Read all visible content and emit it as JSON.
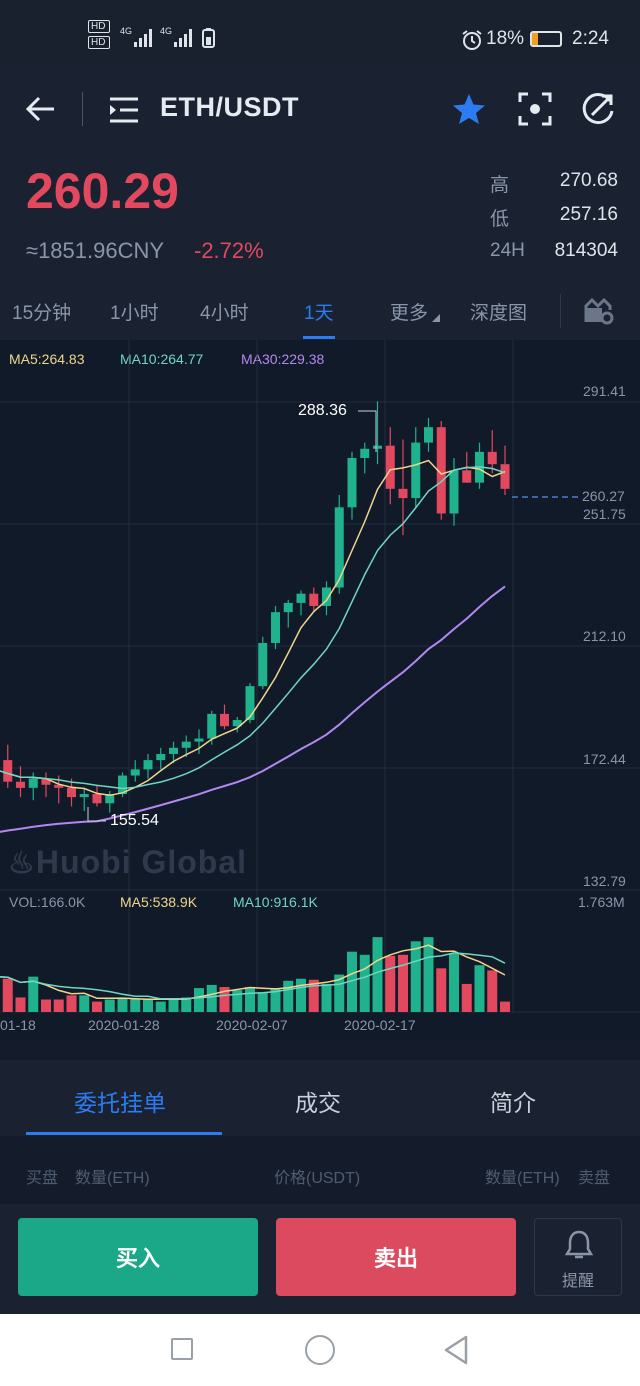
{
  "status": {
    "hd1": "HD",
    "hd2": "HD",
    "net1": "4G",
    "net2": "4G",
    "battery": "18%",
    "time": "2:24"
  },
  "header": {
    "pair": "ETH/USDT"
  },
  "price": {
    "last": "260.29",
    "cny": "≈1851.96CNY",
    "change": "-2.72%",
    "high_label": "高",
    "high": "270.68",
    "low_label": "低",
    "low": "257.16",
    "vol_label": "24H",
    "vol": "814304"
  },
  "tabs": [
    "15分钟",
    "1小时",
    "4小时",
    "1天",
    "更多",
    "深度图"
  ],
  "active_tab": "1天",
  "chart_data": {
    "type": "candlestick",
    "ma_labels": {
      "ma5": "MA5:264.83",
      "ma10": "MA10:264.77",
      "ma30": "MA30:229.38"
    },
    "y_ticks": [
      "291.41",
      "251.75",
      "212.10",
      "172.44",
      "132.79"
    ],
    "current_price_tag": "260.27",
    "high_marker": "288.36",
    "low_marker": "155.54",
    "watermark": "Huobi Global",
    "volume": {
      "vol_label": "VOL:166.0K",
      "ma5_label": "MA5:538.9K",
      "ma10_label": "MA10:916.1K",
      "max_label": "1.763M"
    },
    "x_ticks": [
      "01-18",
      "2020-01-28",
      "2020-02-07",
      "2020-02-17"
    ],
    "colors": {
      "up": "#1fb28c",
      "down": "#e2495f",
      "ma5": "#f0d58c",
      "ma10": "#6fd6c2",
      "ma30": "#b288f0"
    },
    "candles": [
      {
        "o": 165,
        "h": 178,
        "l": 158,
        "c": 166
      },
      {
        "o": 166,
        "h": 176,
        "l": 160,
        "c": 172
      },
      {
        "o": 172,
        "h": 177,
        "l": 163,
        "c": 165
      },
      {
        "o": 165,
        "h": 170,
        "l": 160,
        "c": 163
      },
      {
        "o": 163,
        "h": 168,
        "l": 159,
        "c": 166
      },
      {
        "o": 166,
        "h": 168,
        "l": 160,
        "c": 164
      },
      {
        "o": 164,
        "h": 167,
        "l": 158,
        "c": 163
      },
      {
        "o": 163,
        "h": 166,
        "l": 157,
        "c": 160
      },
      {
        "o": 160,
        "h": 163,
        "l": 155.5,
        "c": 161
      },
      {
        "o": 161,
        "h": 164,
        "l": 157,
        "c": 158
      },
      {
        "o": 158,
        "h": 162,
        "l": 155,
        "c": 161
      },
      {
        "o": 161,
        "h": 168,
        "l": 160,
        "c": 167
      },
      {
        "o": 167,
        "h": 172,
        "l": 165,
        "c": 169
      },
      {
        "o": 169,
        "h": 174,
        "l": 166,
        "c": 172
      },
      {
        "o": 172,
        "h": 176,
        "l": 169,
        "c": 174
      },
      {
        "o": 174,
        "h": 178,
        "l": 171,
        "c": 176
      },
      {
        "o": 176,
        "h": 180,
        "l": 173,
        "c": 178
      },
      {
        "o": 178,
        "h": 182,
        "l": 174,
        "c": 179
      },
      {
        "o": 179,
        "h": 188,
        "l": 177,
        "c": 187
      },
      {
        "o": 187,
        "h": 190,
        "l": 182,
        "c": 183
      },
      {
        "o": 183,
        "h": 186,
        "l": 181,
        "c": 185
      },
      {
        "o": 185,
        "h": 197,
        "l": 184,
        "c": 196
      },
      {
        "o": 196,
        "h": 212,
        "l": 195,
        "c": 210
      },
      {
        "o": 210,
        "h": 222,
        "l": 208,
        "c": 220
      },
      {
        "o": 220,
        "h": 224,
        "l": 215,
        "c": 223
      },
      {
        "o": 223,
        "h": 227,
        "l": 219,
        "c": 226
      },
      {
        "o": 226,
        "h": 228,
        "l": 220,
        "c": 222
      },
      {
        "o": 222,
        "h": 230,
        "l": 219,
        "c": 228
      },
      {
        "o": 228,
        "h": 258,
        "l": 226,
        "c": 254
      },
      {
        "o": 254,
        "h": 272,
        "l": 250,
        "c": 270
      },
      {
        "o": 270,
        "h": 275,
        "l": 265,
        "c": 273
      },
      {
        "o": 273,
        "h": 288.36,
        "l": 268,
        "c": 274
      },
      {
        "o": 274,
        "h": 280,
        "l": 255,
        "c": 260
      },
      {
        "o": 260,
        "h": 276,
        "l": 245,
        "c": 257
      },
      {
        "o": 257,
        "h": 280,
        "l": 254,
        "c": 275
      },
      {
        "o": 275,
        "h": 283,
        "l": 272,
        "c": 280
      },
      {
        "o": 280,
        "h": 282,
        "l": 250,
        "c": 252
      },
      {
        "o": 252,
        "h": 270,
        "l": 248,
        "c": 266
      },
      {
        "o": 266,
        "h": 272,
        "l": 262,
        "c": 262
      },
      {
        "o": 262,
        "h": 275,
        "l": 260,
        "c": 272
      },
      {
        "o": 272,
        "h": 279,
        "l": 265,
        "c": 268
      },
      {
        "o": 268,
        "h": 274,
        "l": 258,
        "c": 260
      }
    ],
    "volumes": [
      0.3,
      0.38,
      0.32,
      0.14,
      0.34,
      0.12,
      0.12,
      0.16,
      0.16,
      0.1,
      0.12,
      0.13,
      0.13,
      0.13,
      0.1,
      0.12,
      0.14,
      0.23,
      0.26,
      0.24,
      0.21,
      0.24,
      0.19,
      0.23,
      0.3,
      0.32,
      0.31,
      0.27,
      0.36,
      0.58,
      0.55,
      0.72,
      0.54,
      0.55,
      0.68,
      0.72,
      0.42,
      0.56,
      0.27,
      0.45,
      0.4,
      0.1
    ]
  },
  "lower_tabs": [
    "委托挂单",
    "成交",
    "简介"
  ],
  "order_header": {
    "buy": "买盘",
    "qty_left": "数量(ETH)",
    "price": "价格(USDT)",
    "qty_right": "数量(ETH)",
    "sell": "卖盘"
  },
  "actions": {
    "buy": "买入",
    "sell": "卖出",
    "alert": "提醒"
  }
}
